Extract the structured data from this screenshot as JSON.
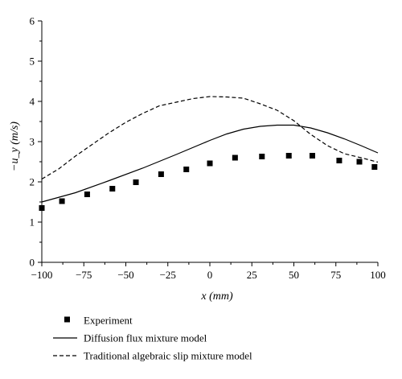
{
  "chart_data": {
    "type": "line",
    "xlabel": "x (mm)",
    "ylabel": "−u_y (m/s)",
    "xlim": [
      -100,
      100
    ],
    "ylim": [
      0,
      6
    ],
    "x_ticks": [
      -100,
      -75,
      -50,
      -25,
      0,
      25,
      50,
      75,
      100
    ],
    "y_ticks": [
      0,
      1,
      2,
      3,
      4,
      5,
      6
    ],
    "x_tick_labels": [
      "−100",
      "−75",
      "−50",
      "−25",
      "0",
      "25",
      "50",
      "75",
      "100"
    ],
    "y_tick_labels": [
      "0",
      "1",
      "2",
      "3",
      "4",
      "5",
      "6"
    ],
    "grid": false,
    "legend_position": "bottom",
    "series": [
      {
        "name": "Experiment",
        "style": "markers",
        "marker": "square",
        "color": "#000000",
        "x": [
          -100,
          -88,
          -73,
          -58,
          -44,
          -29,
          -14,
          0,
          15,
          31,
          47,
          61,
          77,
          89,
          98
        ],
        "y": [
          1.35,
          1.52,
          1.69,
          1.83,
          1.99,
          2.19,
          2.31,
          2.46,
          2.6,
          2.63,
          2.65,
          2.65,
          2.53,
          2.5,
          2.37
        ]
      },
      {
        "name": "Diffusion flux mixture model",
        "style": "solid",
        "color": "#000000",
        "x": [
          -100,
          -80,
          -60,
          -40,
          -20,
          0,
          10,
          20,
          30,
          40,
          50,
          60,
          70,
          80,
          90,
          100
        ],
        "y": [
          1.5,
          1.73,
          2.03,
          2.34,
          2.68,
          3.03,
          3.19,
          3.31,
          3.38,
          3.41,
          3.41,
          3.34,
          3.22,
          3.07,
          2.9,
          2.72
        ]
      },
      {
        "name": "Traditional algebraic slip mixture model",
        "style": "dashed",
        "color": "#000000",
        "x": [
          -100,
          -90,
          -80,
          -70,
          -60,
          -50,
          -40,
          -30,
          -20,
          -10,
          0,
          10,
          20,
          30,
          40,
          50,
          60,
          70,
          80,
          90,
          100
        ],
        "y": [
          2.07,
          2.32,
          2.64,
          2.93,
          3.22,
          3.48,
          3.7,
          3.89,
          3.98,
          4.07,
          4.12,
          4.11,
          4.08,
          3.94,
          3.78,
          3.52,
          3.18,
          2.9,
          2.7,
          2.6,
          2.49
        ]
      }
    ]
  }
}
